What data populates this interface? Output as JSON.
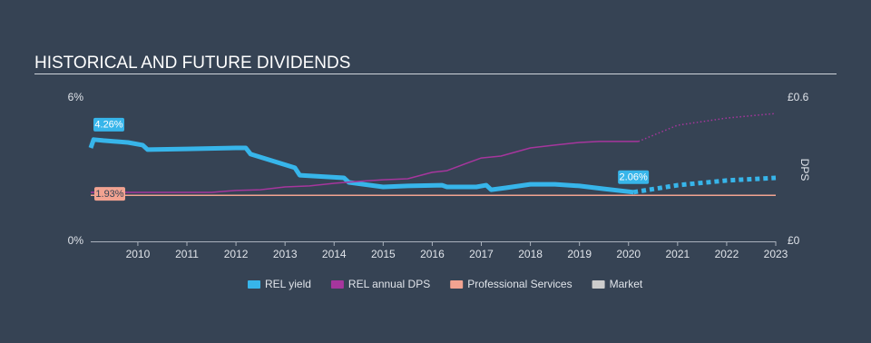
{
  "chart_data": {
    "type": "line",
    "title": "HISTORICAL AND FUTURE DIVIDENDS",
    "y2_label": "DPS",
    "xlim": [
      2009.04,
      2023
    ],
    "xticks": [
      2010,
      2011,
      2012,
      2013,
      2014,
      2015,
      2016,
      2017,
      2018,
      2019,
      2020,
      2021,
      2022,
      2023
    ],
    "ylim": [
      0,
      6
    ],
    "yticks": [
      {
        "value": 0,
        "label": "0%"
      },
      {
        "value": 6,
        "label": "6%"
      }
    ],
    "y2lim": [
      0,
      0.6
    ],
    "y2ticks": [
      {
        "value": 0,
        "label": "£0"
      },
      {
        "value": 0.6,
        "label": "£0.6"
      }
    ],
    "series": [
      {
        "name": "REL yield",
        "color": "#37b5ea",
        "width": 5,
        "x": [
          2009.04,
          2009.1,
          2009.3,
          2009.8,
          2010.1,
          2010.2,
          2011,
          2012,
          2012.2,
          2012.3,
          2012.9,
          2013.2,
          2013.3,
          2014.2,
          2014.3,
          2015,
          2015.5,
          2016.2,
          2016.3,
          2016.9,
          2017.1,
          2017.2,
          2017.5,
          2018,
          2018.5,
          2019,
          2019.5,
          2020.1
        ],
        "values": [
          3.91,
          4.26,
          4.22,
          4.14,
          4.03,
          3.84,
          3.87,
          3.91,
          3.91,
          3.65,
          3.27,
          3.08,
          2.77,
          2.66,
          2.47,
          2.28,
          2.32,
          2.35,
          2.28,
          2.28,
          2.35,
          2.16,
          2.24,
          2.39,
          2.39,
          2.32,
          2.2,
          2.06
        ],
        "value_labels": [
          null,
          "4.26%",
          null,
          null,
          null,
          null,
          null,
          null,
          null,
          null,
          null,
          null,
          null,
          null,
          null,
          null,
          null,
          null,
          null,
          null,
          null,
          null,
          null,
          null,
          null,
          null,
          null,
          "2.06%"
        ],
        "forecast_x": [
          2020.1,
          2021,
          2022,
          2023
        ],
        "forecast_values": [
          2.06,
          2.35,
          2.55,
          2.66
        ]
      },
      {
        "name": "REL annual DPS",
        "color": "#a6369d",
        "width": 1.5,
        "axis": "y2",
        "x": [
          2009.04,
          2011.5,
          2012,
          2012.5,
          2013,
          2013.5,
          2014,
          2014.5,
          2015,
          2015.5,
          2016,
          2016.3,
          2016.7,
          2017,
          2017.4,
          2018,
          2018.5,
          2019,
          2019.4,
          2020.2
        ],
        "values": [
          0.205,
          0.205,
          0.213,
          0.216,
          0.228,
          0.232,
          0.243,
          0.251,
          0.258,
          0.262,
          0.289,
          0.296,
          0.327,
          0.349,
          0.357,
          0.391,
          0.403,
          0.414,
          0.418,
          0.418
        ],
        "forecast_x": [
          2020.2,
          2021,
          2022,
          2023
        ],
        "forecast_values": [
          0.418,
          0.486,
          0.516,
          0.535
        ]
      },
      {
        "name": "Professional Services",
        "color": "#f2a391",
        "width": 1.5,
        "x": [
          2009.04,
          2023
        ],
        "values": [
          1.93,
          1.93
        ],
        "value_labels": [
          "1.93%",
          null
        ]
      },
      {
        "name": "Market",
        "color": "#cccccc",
        "width": 1.5,
        "x": [],
        "values": []
      }
    ]
  }
}
